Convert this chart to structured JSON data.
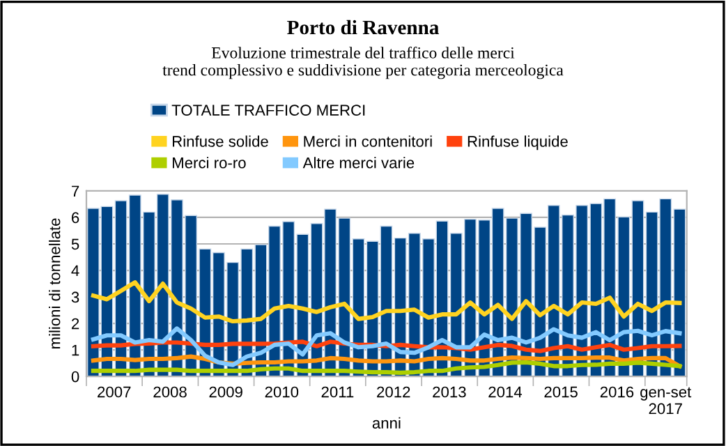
{
  "chart_data": {
    "type": "bar",
    "title": "Porto di Ravenna",
    "subtitle": "Evoluzione trimestrale del traffico delle merci\ntrend complessivo e suddivisione per categoria merceologica",
    "xlabel": "anni",
    "ylabel": "milioni di tonnellate",
    "x": [
      "2007-02-15",
      "2007-05-15",
      "2007-08-15",
      "2007-11-15",
      "2008-02-15",
      "2008-05-15",
      "2008-08-15",
      "2008-11-15",
      "2009-02-15",
      "2009-05-15",
      "2009-08-15",
      "2009-11-15",
      "2010-02-15",
      "2010-05-15",
      "2010-08-15",
      "2010-11-15",
      "2011-02-15",
      "2011-05-15",
      "2011-08-15",
      "2011-11-15",
      "2012-02-15",
      "2012-05-15",
      "2012-08-15",
      "2012-11-15",
      "2013-02-15",
      "2013-05-15",
      "2013-08-15",
      "2013-11-15",
      "2014-02-15",
      "2014-05-15",
      "2014-08-15",
      "2014-11-15",
      "2015-02-15",
      "2015-05-15",
      "2015-08-15",
      "2015-11-15",
      "2016-02-15",
      "2016-05-15",
      "2016-08-15",
      "2016-11-15",
      "2017-02-15",
      "2017-05-15",
      "2017-08-15"
    ],
    "xlim": [
      "2007-01-01",
      "2017-10-01"
    ],
    "xticks": [
      {
        "value": "2007-01-01",
        "label": null
      },
      {
        "value": "2007-07-01",
        "label": "2007"
      },
      {
        "value": "2008-01-01",
        "label": null
      },
      {
        "value": "2008-07-01",
        "label": "2008"
      },
      {
        "value": "2009-01-01",
        "label": null
      },
      {
        "value": "2009-07-01",
        "label": "2009"
      },
      {
        "value": "2010-01-01",
        "label": null
      },
      {
        "value": "2010-07-01",
        "label": "2010"
      },
      {
        "value": "2011-01-01",
        "label": null
      },
      {
        "value": "2011-07-01",
        "label": "2011"
      },
      {
        "value": "2012-01-01",
        "label": null
      },
      {
        "value": "2012-07-01",
        "label": "2012"
      },
      {
        "value": "2013-01-01",
        "label": null
      },
      {
        "value": "2013-07-01",
        "label": "2013"
      },
      {
        "value": "2014-01-01",
        "label": null
      },
      {
        "value": "2014-07-01",
        "label": "2014"
      },
      {
        "value": "2015-01-01",
        "label": null
      },
      {
        "value": "2015-07-01",
        "label": "2015"
      },
      {
        "value": "2016-01-01",
        "label": null
      },
      {
        "value": "2016-07-01",
        "label": "2016"
      },
      {
        "value": "2017-01-01",
        "label": null
      },
      {
        "value": "2017-05-15",
        "label": "gen-set\n2017"
      },
      {
        "value": "2017-10-01",
        "label": null
      }
    ],
    "ylim": [
      0,
      7
    ],
    "yticks": [
      0,
      1,
      2,
      3,
      4,
      5,
      6,
      7
    ],
    "grid": "y",
    "legend": "top",
    "series": [
      {
        "name": "TOTALE TRAFFICO MERCI",
        "color": "#004586",
        "values": [
          6.34,
          6.41,
          6.63,
          6.84,
          6.2,
          6.87,
          6.66,
          6.07,
          4.81,
          4.67,
          4.3,
          4.81,
          4.97,
          5.67,
          5.84,
          5.36,
          5.77,
          6.31,
          5.97,
          5.19,
          5.1,
          5.67,
          5.22,
          5.4,
          5.19,
          5.86,
          5.4,
          5.93,
          5.9,
          6.34,
          5.97,
          6.15,
          5.63,
          6.45,
          6.09,
          6.45,
          6.52,
          6.7,
          6.02,
          6.63,
          6.2,
          6.7,
          6.31
        ]
      },
      {
        "name": "Rinfuse solide",
        "type": "line",
        "color": "#ffd320",
        "values": [
          3.05,
          2.91,
          3.23,
          3.55,
          2.84,
          3.5,
          2.79,
          2.56,
          2.22,
          2.26,
          2.08,
          2.11,
          2.17,
          2.56,
          2.66,
          2.56,
          2.43,
          2.61,
          2.74,
          2.17,
          2.24,
          2.47,
          2.47,
          2.52,
          2.22,
          2.34,
          2.34,
          2.79,
          2.34,
          2.7,
          2.17,
          2.84,
          2.31,
          2.66,
          2.34,
          2.79,
          2.74,
          2.97,
          2.26,
          2.74,
          2.47,
          2.79,
          2.77
        ]
      },
      {
        "name": "Merci in contenitori",
        "type": "line",
        "color": "#ff950e",
        "values": [
          0.6,
          0.66,
          0.66,
          0.62,
          0.66,
          0.66,
          0.69,
          0.75,
          0.66,
          0.53,
          0.48,
          0.51,
          0.53,
          0.53,
          0.57,
          0.57,
          0.6,
          0.69,
          0.66,
          0.6,
          0.57,
          0.57,
          0.6,
          0.57,
          0.66,
          0.69,
          0.66,
          0.6,
          0.6,
          0.66,
          0.71,
          0.69,
          0.66,
          0.69,
          0.69,
          0.69,
          0.71,
          0.71,
          0.6,
          0.66,
          0.69,
          0.69,
          0.39
        ]
      },
      {
        "name": "Rinfuse liquide",
        "type": "line",
        "color": "#ff420e",
        "values": [
          1.14,
          1.17,
          1.17,
          1.23,
          1.24,
          1.28,
          1.28,
          1.24,
          1.19,
          1.19,
          1.23,
          1.23,
          1.23,
          1.24,
          1.28,
          1.31,
          1.14,
          1.31,
          1.24,
          1.19,
          1.19,
          1.14,
          1.19,
          1.14,
          1.1,
          1.1,
          1.07,
          1.01,
          1.1,
          1.19,
          1.15,
          1.01,
          0.96,
          1.07,
          1.14,
          1.01,
          1.1,
          1.19,
          1.01,
          1.07,
          1.14,
          1.14,
          1.15
        ]
      },
      {
        "name": "Merci ro-ro",
        "type": "line",
        "color": "#aecf00",
        "values": [
          0.21,
          0.21,
          0.21,
          0.21,
          0.25,
          0.25,
          0.25,
          0.21,
          0.21,
          0.21,
          0.21,
          0.21,
          0.27,
          0.3,
          0.3,
          0.21,
          0.21,
          0.21,
          0.21,
          0.18,
          0.16,
          0.16,
          0.14,
          0.16,
          0.21,
          0.21,
          0.3,
          0.34,
          0.36,
          0.43,
          0.52,
          0.53,
          0.48,
          0.39,
          0.39,
          0.43,
          0.44,
          0.48,
          0.48,
          0.52,
          0.48,
          0.44,
          0.39
        ]
      },
      {
        "name": "Altre merci varie",
        "type": "line",
        "color": "#83caff",
        "values": [
          1.4,
          1.55,
          1.55,
          1.28,
          1.37,
          1.31,
          1.81,
          1.37,
          0.78,
          0.53,
          0.43,
          0.75,
          0.89,
          1.19,
          1.24,
          0.83,
          1.55,
          1.63,
          1.28,
          1.1,
          1.14,
          1.24,
          0.92,
          0.89,
          1.1,
          1.37,
          1.1,
          1.1,
          1.58,
          1.37,
          1.46,
          1.28,
          1.46,
          1.78,
          1.55,
          1.46,
          1.67,
          1.37,
          1.67,
          1.72,
          1.55,
          1.71,
          1.63
        ]
      }
    ]
  }
}
